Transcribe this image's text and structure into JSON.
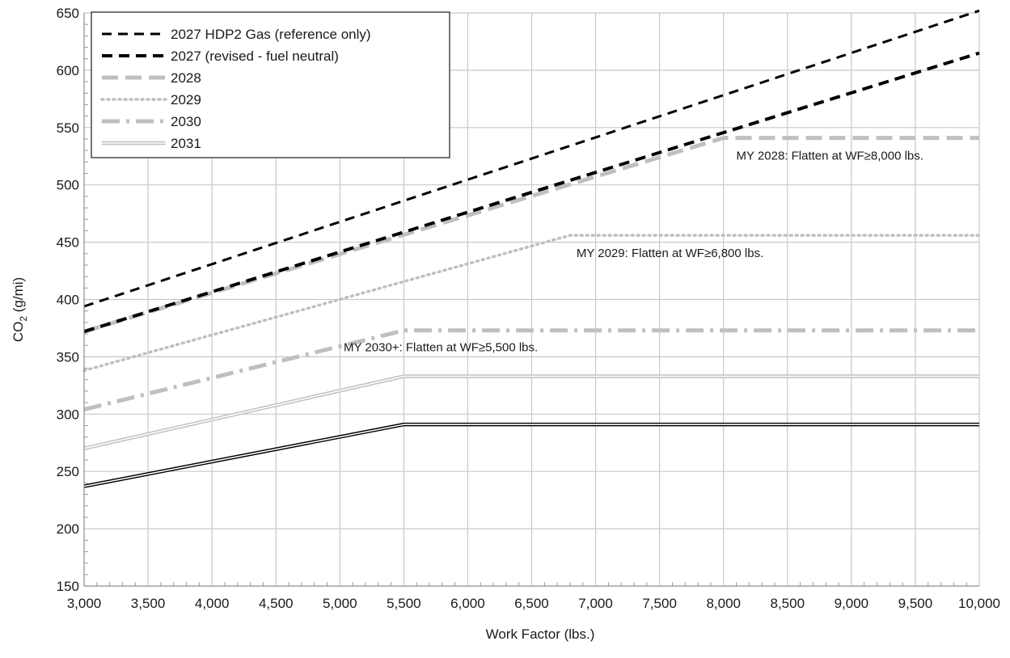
{
  "chart_data": {
    "type": "line",
    "xlabel": "Work Factor (lbs.)",
    "ylabel": "CO₂ (g/mi)",
    "ylabel_main": "CO",
    "ylabel_sub": "2",
    "ylabel_tail": " (g/mi)",
    "xlim": [
      3000,
      10000
    ],
    "ylim": [
      150,
      650
    ],
    "x_ticks": [
      3000,
      3500,
      4000,
      4500,
      5000,
      5500,
      6000,
      6500,
      7000,
      7500,
      8000,
      8500,
      9000,
      9500,
      10000
    ],
    "x_tick_labels": [
      "3,000",
      "3,500",
      "4,000",
      "4,500",
      "5,000",
      "5,500",
      "6,000",
      "6,500",
      "7,000",
      "7,500",
      "8,000",
      "8,500",
      "9,000",
      "9,500",
      "10,000"
    ],
    "y_ticks": [
      150,
      200,
      250,
      300,
      350,
      400,
      450,
      500,
      550,
      600,
      650
    ],
    "y_tick_labels": [
      "150",
      "200",
      "250",
      "300",
      "350",
      "400",
      "450",
      "500",
      "550",
      "600",
      "650"
    ],
    "grid": true,
    "legend_position": "top-left",
    "series": [
      {
        "name": "2027 HDP2 Gas (reference only)",
        "style": "dash",
        "color": "#000000",
        "x": [
          3000,
          10000
        ],
        "y": [
          394,
          652
        ]
      },
      {
        "name": "2027 (revised - fuel neutral)",
        "style": "dash-bold",
        "color": "#000000",
        "x": [
          3000,
          10000
        ],
        "y": [
          372,
          615
        ]
      },
      {
        "name": "2028",
        "style": "longdash",
        "color": "#bfbfbf",
        "x": [
          3000,
          8000,
          10000
        ],
        "y": [
          372,
          541,
          541
        ]
      },
      {
        "name": "2029",
        "style": "dot",
        "color": "#bfbfbf",
        "x": [
          3000,
          6800,
          10000
        ],
        "y": [
          338,
          456,
          456
        ]
      },
      {
        "name": "2030",
        "style": "dashdot",
        "color": "#bfbfbf",
        "x": [
          3000,
          5500,
          10000
        ],
        "y": [
          304,
          373,
          373
        ]
      },
      {
        "name": "2031",
        "style": "double",
        "color": "#bfbfbf",
        "x": [
          3000,
          5500,
          10000
        ],
        "y": [
          270,
          333,
          333
        ]
      },
      {
        "name": "",
        "style": "double",
        "color": "#000000",
        "x": [
          3000,
          5500,
          10000
        ],
        "y": [
          237,
          291,
          291
        ]
      }
    ],
    "annotations": [
      {
        "text": "MY 2028: Flatten at WF≥8,000 lbs.",
        "x": 8100,
        "y": 522
      },
      {
        "text": "MY 2029: Flatten at WF≥6,800 lbs.",
        "x": 6850,
        "y": 437
      },
      {
        "text": "MY 2030+: Flatten at WF≥5,500 lbs.",
        "x": 5030,
        "y": 355
      }
    ]
  }
}
